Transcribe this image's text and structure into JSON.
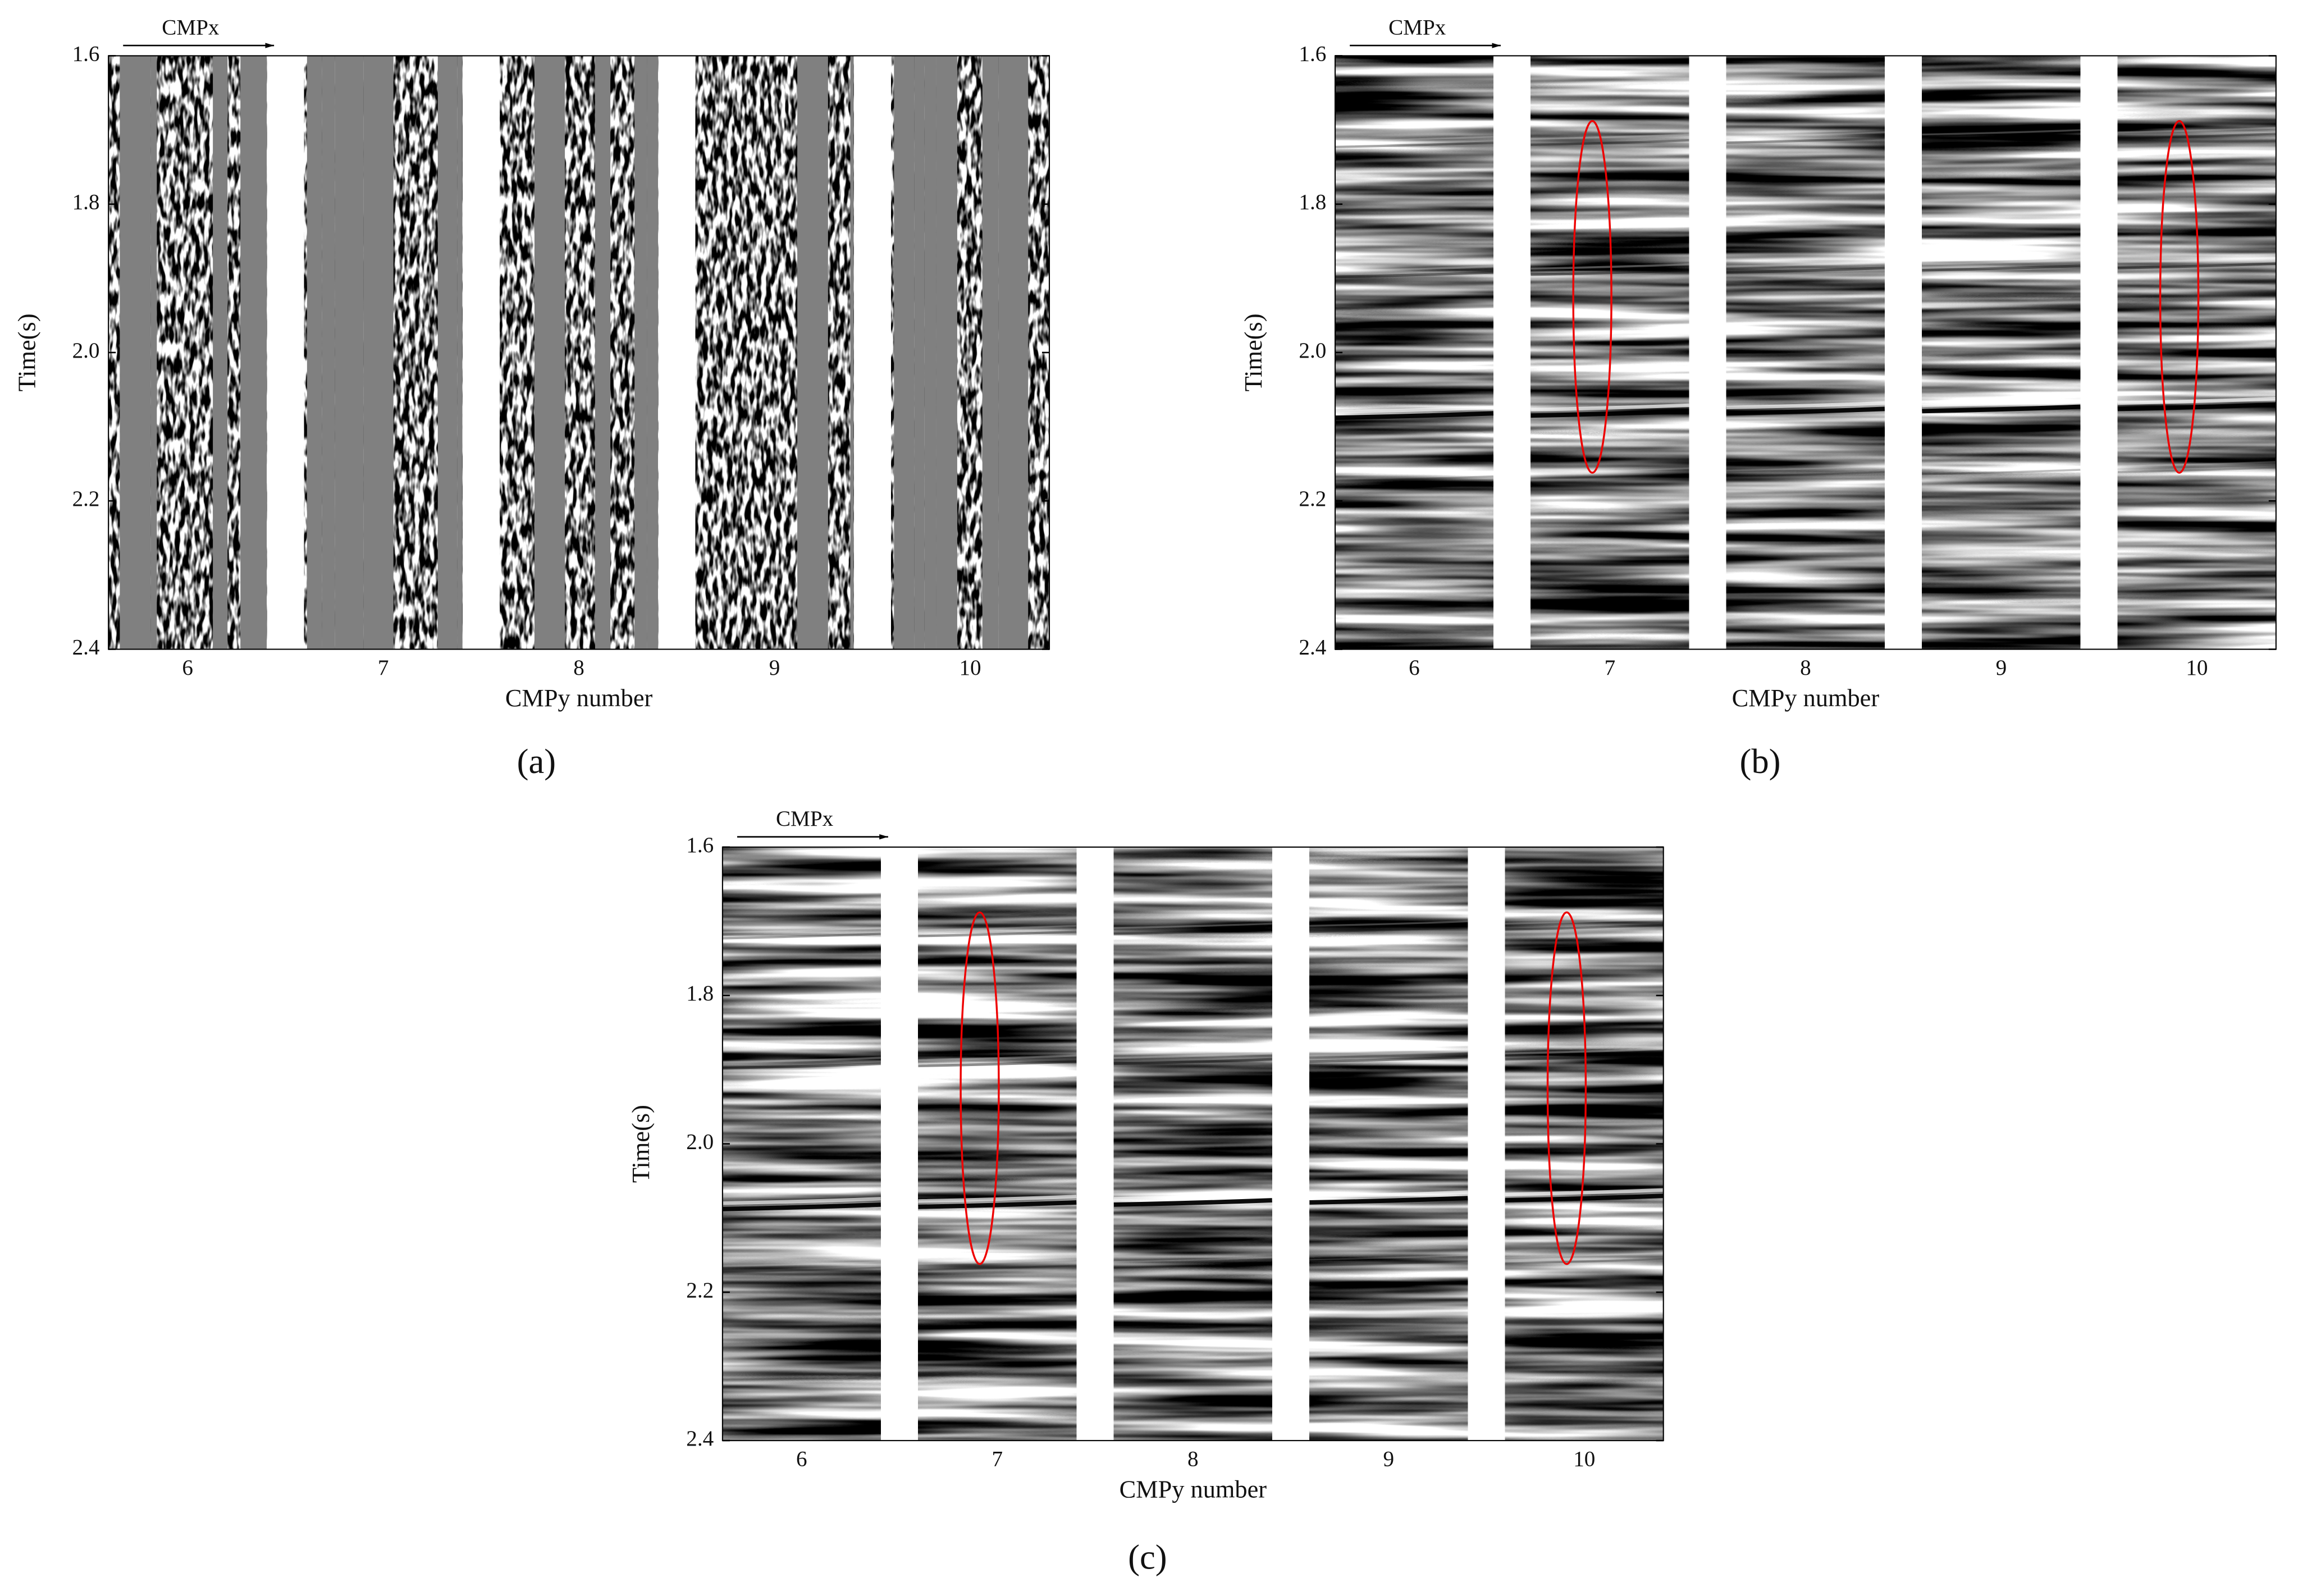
{
  "chart_data": [
    {
      "type": "seismic",
      "panel_label": "(a)",
      "annotation": "CMPx",
      "xlabel": "CMPy number",
      "ylabel": "Time(s)",
      "categories": [
        "6",
        "7",
        "8",
        "9",
        "10"
      ],
      "ylim": [
        1.6,
        2.4
      ],
      "yticks": [
        1.6,
        1.8,
        {
          "value": 2,
          "label": "2.0"
        },
        2.2,
        2.4
      ],
      "y_inverted": true,
      "decimated": true
    },
    {
      "type": "seismic",
      "panel_label": "(b)",
      "annotation": "CMPx",
      "xlabel": "CMPy number",
      "ylabel": "Time(s)",
      "categories": [
        "6",
        "7",
        "8",
        "9",
        "10"
      ],
      "ylim": [
        1.6,
        2.4
      ],
      "yticks": [
        1.6,
        1.8,
        {
          "value": 2,
          "label": "2.0"
        },
        2.2,
        2.4
      ],
      "y_inverted": true,
      "decimated": false
    },
    {
      "type": "seismic",
      "panel_label": "(c)",
      "annotation": "CMPx",
      "xlabel": "CMPy number",
      "ylabel": "Time(s)",
      "categories": [
        "6",
        "7",
        "8",
        "9",
        "10"
      ],
      "ylim": [
        1.6,
        2.4
      ],
      "yticks": [
        1.6,
        1.8,
        {
          "value": 2,
          "label": "2.0"
        },
        2.2,
        2.4
      ],
      "y_inverted": true,
      "decimated": false
    }
  ]
}
